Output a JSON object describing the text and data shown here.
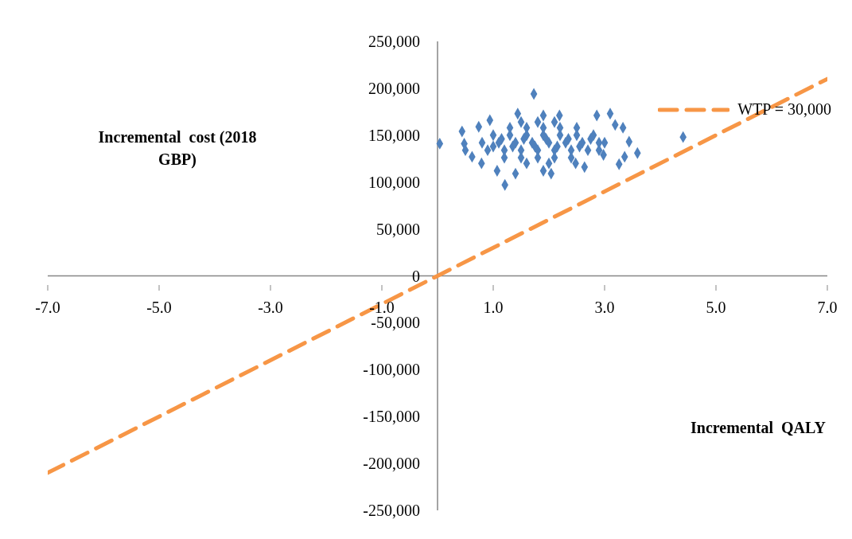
{
  "chart_data": {
    "type": "scatter",
    "xlabel": "Incremental  QALY",
    "ylabel": "Incremental  cost (2018 GBP)",
    "xlim": [
      -7,
      7
    ],
    "xticks": [
      {
        "value": -7,
        "label": "-7.0"
      },
      {
        "value": -5,
        "label": "-5.0"
      },
      {
        "value": -3,
        "label": "-3.0"
      },
      {
        "value": -1,
        "label": "-1.0"
      },
      {
        "value": 1,
        "label": "1.0"
      },
      {
        "value": 3,
        "label": "3.0"
      },
      {
        "value": 5,
        "label": "5.0"
      },
      {
        "value": 7,
        "label": "7.0"
      }
    ],
    "ylim": [
      -250000,
      250000
    ],
    "yticks": [
      {
        "value": -250000,
        "label": "-250,000"
      },
      {
        "value": -200000,
        "label": "-200,000"
      },
      {
        "value": -150000,
        "label": "-150,000"
      },
      {
        "value": -100000,
        "label": "-100,000"
      },
      {
        "value": -50000,
        "label": "-50,000"
      },
      0,
      {
        "value": 50000,
        "label": "50,000"
      },
      {
        "value": 100000,
        "label": "100,000"
      },
      {
        "value": 150000,
        "label": "150,000"
      },
      {
        "value": 200000,
        "label": "200,000"
      },
      {
        "value": 250000,
        "label": "250,000"
      }
    ],
    "grid": false,
    "legend": "top right",
    "marker": "diamond",
    "series": [
      {
        "color": "#4f81bd",
        "x": [
          0.04,
          1.73,
          1.21,
          4.41,
          3.59,
          0.44,
          0.5,
          3.44,
          3.26,
          3.1,
          1.44,
          1.07,
          2.04,
          2.64,
          3.33,
          2.86,
          0.62,
          0.74,
          0.94,
          1.4,
          1.9,
          3.36,
          3.19,
          2.19,
          1.9,
          0.79,
          2.48,
          2.98,
          0.48,
          1.0,
          1.3,
          1.6,
          1.9,
          2.2,
          2.5,
          2.8,
          0.8,
          1.1,
          1.4,
          1.7,
          2.0,
          2.3,
          2.6,
          2.9,
          3.0,
          0.9,
          1.2,
          1.5,
          1.8,
          2.1,
          2.4,
          2.7,
          2.9,
          1.3,
          1.6,
          1.9,
          2.2,
          2.5,
          1.2,
          1.5,
          1.8,
          2.1,
          2.4,
          1.15,
          1.55,
          1.95,
          2.35,
          2.75,
          1.0,
          1.35,
          1.75,
          2.15,
          2.55,
          1.5,
          1.8,
          2.1,
          1.6,
          2.0
        ],
        "values": [
          141000,
          194000,
          97000,
          148000,
          131000,
          154000,
          134000,
          143000,
          119000,
          173000,
          173000,
          112000,
          109000,
          116000,
          158000,
          171000,
          127000,
          159000,
          166000,
          109000,
          112000,
          127000,
          161000,
          171000,
          171000,
          120000,
          120000,
          129000,
          141000,
          150000,
          150000,
          150000,
          150000,
          150000,
          150000,
          150000,
          142000,
          142000,
          142000,
          142000,
          142000,
          142000,
          142000,
          142000,
          142000,
          134000,
          134000,
          134000,
          134000,
          134000,
          134000,
          134000,
          134000,
          158000,
          158000,
          158000,
          158000,
          158000,
          126000,
          126000,
          126000,
          126000,
          126000,
          146000,
          146000,
          146000,
          146000,
          146000,
          138000,
          138000,
          138000,
          138000,
          138000,
          164000,
          164000,
          164000,
          120000,
          120000
        ]
      },
      {
        "type": "line",
        "name": "WTP = 30,000",
        "color": "#f79646",
        "line_style": "dashed",
        "marker": "none",
        "x": [
          -7,
          7
        ],
        "values": [
          -210000,
          210000
        ]
      }
    ]
  }
}
